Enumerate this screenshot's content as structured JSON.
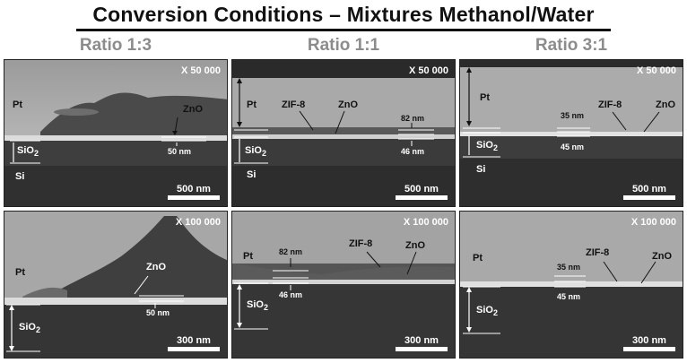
{
  "title": "Conversion Conditions – Mixtures Methanol/Water",
  "columns": [
    {
      "heading": "Ratio 1:3"
    },
    {
      "heading": "Ratio 1:1"
    },
    {
      "heading": "Ratio 3:1"
    }
  ],
  "panels": {
    "r13_low": {
      "mag": "X 50 000",
      "scale": "500 nm",
      "pt": "Pt",
      "sio2": "SiO",
      "sub2": "2",
      "si": "Si",
      "zno": "ZnO",
      "t1": "50 nm"
    },
    "r11_low": {
      "mag": "X 50 000",
      "scale": "500 nm",
      "pt": "Pt",
      "sio2": "SiO",
      "sub2": "2",
      "si": "Si",
      "zif": "ZIF-8",
      "zno": "ZnO",
      "t1": "82 nm",
      "t2": "46 nm"
    },
    "r31_low": {
      "mag": "X 50 000",
      "scale": "500 nm",
      "pt": "Pt",
      "sio2": "SiO",
      "sub2": "2",
      "si": "Si",
      "zif": "ZIF-8",
      "zno": "ZnO",
      "t1": "35 nm",
      "t2": "45 nm"
    },
    "r13_high": {
      "mag": "X 100 000",
      "scale": "300 nm",
      "pt": "Pt",
      "sio2": "SiO",
      "sub2": "2",
      "zno": "ZnO",
      "t1": "50 nm"
    },
    "r11_high": {
      "mag": "X 100 000",
      "scale": "300 nm",
      "pt": "Pt",
      "sio2": "SiO",
      "sub2": "2",
      "zif": "ZIF-8",
      "zno": "ZnO",
      "t1": "82 nm",
      "t2": "46 nm"
    },
    "r31_high": {
      "mag": "X 100 000",
      "scale": "300 nm",
      "pt": "Pt",
      "sio2": "SiO",
      "sub2": "2",
      "zif": "ZIF-8",
      "zno": "ZnO",
      "t1": "35 nm",
      "t2": "45 nm"
    }
  }
}
